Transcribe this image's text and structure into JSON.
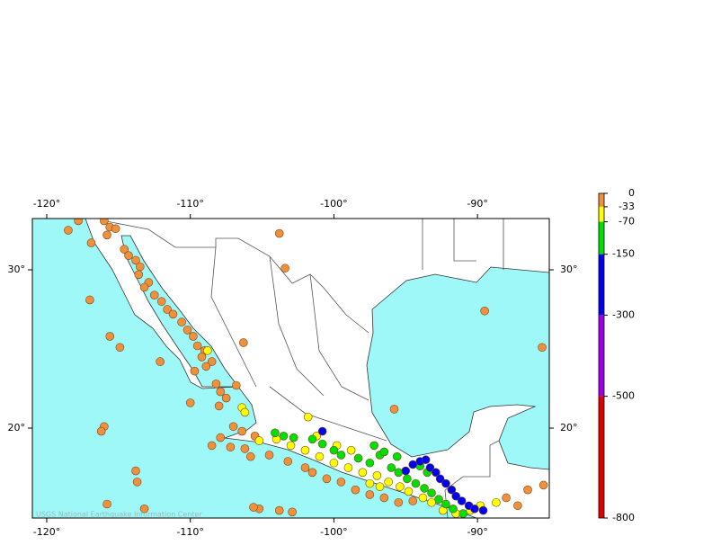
{
  "map": {
    "lon_range": [
      -121,
      -85
    ],
    "lat_range": [
      14.32,
      33.24
    ],
    "lon_ticks": [
      {
        "value": -120,
        "label": "-120°"
      },
      {
        "value": -110,
        "label": "-110°"
      },
      {
        "value": -100,
        "label": "-100°"
      },
      {
        "value": -90,
        "label": "-90°"
      }
    ],
    "lat_ticks": [
      {
        "value": 30,
        "label": "30°"
      },
      {
        "value": 20,
        "label": "20°"
      }
    ],
    "credit": "USGS National Earthquake Information Center",
    "depth_scale": {
      "range": [
        0,
        -800
      ],
      "ticks": [
        0,
        -33,
        -70,
        -150,
        -300,
        -500,
        -800
      ],
      "colors": [
        "#f0903c",
        "#ffff00",
        "#00e000",
        "#0000f0",
        "#a000e8",
        "#e00000"
      ]
    },
    "events": {
      "lon": [
        -117.8,
        -118.5,
        -116,
        -115.6,
        -115.8,
        -115.2,
        -116.9,
        -114.6,
        -114.3,
        -113.8,
        -113.5,
        -113.6,
        -112.9,
        -113.2,
        -112.5,
        -112,
        -111.6,
        -111.2,
        -110.6,
        -110.2,
        -109.8,
        -109.5,
        -109,
        -109.2,
        -108.5,
        -108.9,
        -109.7,
        -108.2,
        -107.9,
        -107.5,
        -108,
        -106.8,
        -112.1,
        -115.6,
        -114.9,
        -117,
        -110,
        -116,
        -116.2,
        -113.8,
        -113.7,
        -115.8,
        -113.2,
        -105.5,
        -106.4,
        -107,
        -107.9,
        -108.5,
        -107.2,
        -106.2,
        -105.8,
        -104.5,
        -103.2,
        -102,
        -101.5,
        -100.5,
        -99.5,
        -98.5,
        -97.5,
        -96.5,
        -95.5,
        -94.5,
        -105.2,
        -105.6,
        -103.8,
        -102.9,
        -103.8,
        -103.4,
        -106.3,
        -95.8,
        -89.5,
        -85.5,
        -88,
        -86.5,
        -85.4,
        -87.2,
        -108.8,
        -106.4,
        -106.2,
        -105.2,
        -104,
        -103,
        -102,
        -101,
        -100,
        -99,
        -98,
        -97,
        -96.2,
        -95.4,
        -94.8,
        -93.8,
        -93.2,
        -92.4,
        -91.5,
        -90.5,
        -89.8,
        -88.7,
        -97.5,
        -99.8,
        -101.2,
        -98.8,
        -96.8,
        -101.8,
        -104.1,
        -103.5,
        -102.8,
        -101.5,
        -100.8,
        -100,
        -99.5,
        -98.3,
        -97.5,
        -96.8,
        -96,
        -95.5,
        -94.9,
        -94.3,
        -93.7,
        -93.2,
        -92.7,
        -92.2,
        -91.7,
        -91,
        -95.6,
        -96.5,
        -97.2,
        -94,
        -93.5,
        -100.8,
        -94.5,
        -94,
        -93.6,
        -93.3,
        -92.9,
        -92.6,
        -92.2,
        -91.8,
        -91.5,
        -91.1,
        -90.6,
        -90.2,
        -89.6,
        -95
      ],
      "lat": [
        33.1,
        32.5,
        33.1,
        32.7,
        32.2,
        32.6,
        31.7,
        31.3,
        30.9,
        30.6,
        30.2,
        29.7,
        29.2,
        28.9,
        28.4,
        28,
        27.5,
        27.2,
        26.7,
        26.2,
        25.8,
        25.2,
        24.9,
        24.5,
        24.2,
        23.9,
        23.6,
        22.8,
        22.3,
        21.9,
        21.4,
        22.7,
        24.2,
        25.8,
        25.1,
        28.1,
        21.6,
        20.1,
        19.8,
        17.3,
        16.6,
        15.2,
        14.9,
        19.5,
        19.8,
        20.1,
        19.4,
        18.9,
        18.8,
        18.7,
        18.2,
        18.3,
        17.9,
        17.5,
        17.2,
        16.8,
        16.6,
        16.1,
        15.8,
        15.6,
        15.3,
        15.4,
        14.9,
        15,
        14.8,
        14.7,
        32.3,
        30.1,
        25.4,
        21.2,
        27.4,
        25.1,
        15.6,
        16.1,
        16.4,
        15.1,
        24.9,
        21.3,
        21,
        19.2,
        19.3,
        18.9,
        18.6,
        18.2,
        17.8,
        17.5,
        17.2,
        17,
        16.6,
        16.3,
        16,
        15.6,
        15.3,
        14.8,
        14.6,
        14.8,
        15.1,
        15.3,
        16.5,
        18.9,
        19.5,
        18.6,
        16.3,
        20.7,
        19.7,
        19.5,
        19.4,
        19.3,
        19,
        18.6,
        18.3,
        18.1,
        17.8,
        18.3,
        17.5,
        17.2,
        16.8,
        16.5,
        16.2,
        15.9,
        15.5,
        15.2,
        14.9,
        14.6,
        18.2,
        18.5,
        18.9,
        17.6,
        17.2,
        19.8,
        17.7,
        17.9,
        18,
        17.5,
        17.2,
        16.8,
        16.5,
        16.1,
        15.7,
        15.4,
        15.1,
        14.9,
        14.8,
        17.3
      ],
      "depth": [
        -15,
        -15,
        -15,
        -15,
        -15,
        -15,
        -15,
        -15,
        -15,
        -15,
        -15,
        -15,
        -15,
        -15,
        -15,
        -15,
        -15,
        -15,
        -15,
        -15,
        -15,
        -15,
        -15,
        -15,
        -15,
        -15,
        -15,
        -15,
        -15,
        -15,
        -15,
        -15,
        -15,
        -15,
        -15,
        -15,
        -15,
        -15,
        -15,
        -15,
        -15,
        -15,
        -15,
        -15,
        -15,
        -15,
        -15,
        -15,
        -15,
        -15,
        -15,
        -15,
        -15,
        -15,
        -15,
        -15,
        -15,
        -15,
        -15,
        -15,
        -15,
        -15,
        -15,
        -15,
        -15,
        -15,
        -15,
        -15,
        -15,
        -15,
        -15,
        -15,
        -15,
        -15,
        -15,
        -15,
        -50,
        -50,
        -50,
        -50,
        -50,
        -50,
        -50,
        -50,
        -50,
        -50,
        -50,
        -50,
        -50,
        -50,
        -50,
        -50,
        -50,
        -50,
        -50,
        -50,
        -50,
        -50,
        -50,
        -50,
        -50,
        -50,
        -50,
        -50,
        -100,
        -100,
        -100,
        -100,
        -100,
        -100,
        -100,
        -100,
        -100,
        -100,
        -100,
        -100,
        -100,
        -100,
        -100,
        -100,
        -100,
        -100,
        -100,
        -100,
        -100,
        -100,
        -100,
        -100,
        -100,
        -200,
        -200,
        -200,
        -200,
        -200,
        -200,
        -200,
        -200,
        -200,
        -200,
        -200,
        -200,
        -200,
        -200,
        -200
      ]
    }
  }
}
